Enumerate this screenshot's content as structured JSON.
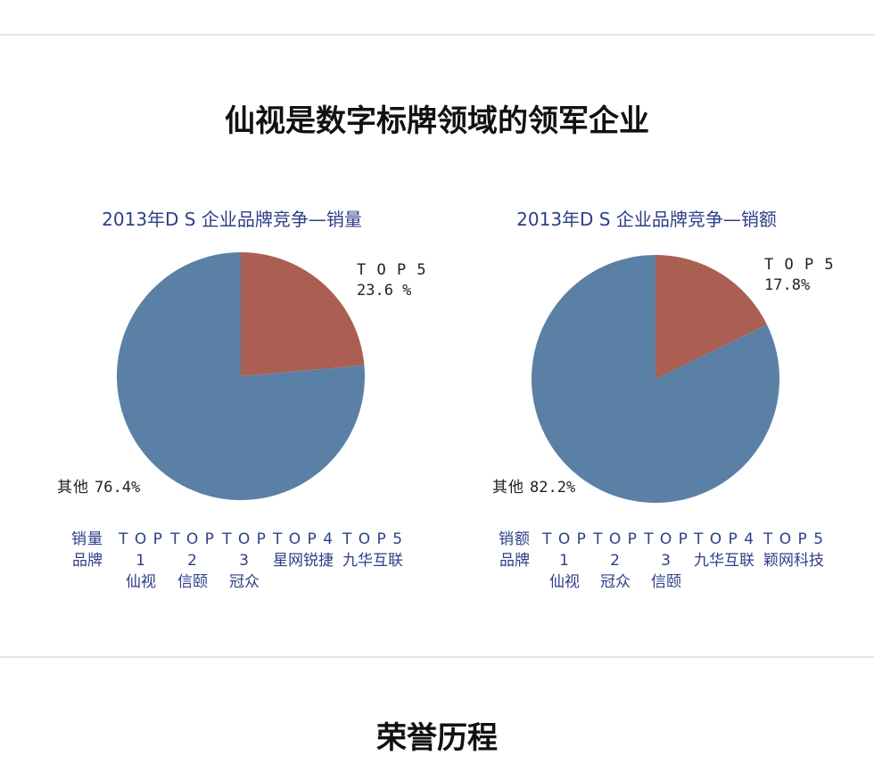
{
  "page": {
    "main_title": "仙视是数字标牌领域的领军企业",
    "honor_title": "荣誉历程"
  },
  "colors": {
    "others": "#5b80a6",
    "top5": "#ab5f52",
    "title_blue": "#2d3f87"
  },
  "chart_data": [
    {
      "type": "pie",
      "title": "2013年D S 企业品牌竞争—销量",
      "slices": [
        {
          "name": "T O P 5",
          "value": 23.6,
          "label": "23.6 %",
          "color": "#ab5f52"
        },
        {
          "name": "其他",
          "value": 76.4,
          "label": "76.4%",
          "color": "#5b80a6"
        }
      ],
      "ranking": {
        "header": [
          "销量",
          "品牌"
        ],
        "items": [
          {
            "rank": "T O P 1",
            "brand": "仙视"
          },
          {
            "rank": "T O P 2",
            "brand": "信颐"
          },
          {
            "rank": "T O P 3",
            "brand": "冠众"
          },
          {
            "rank": "T O P 4",
            "brand": "星网锐捷"
          },
          {
            "rank": "T O P 5",
            "brand": "九华互联"
          }
        ]
      }
    },
    {
      "type": "pie",
      "title": "2013年D S 企业品牌竞争—销额",
      "slices": [
        {
          "name": "T O P 5",
          "value": 17.8,
          "label": "17.8%",
          "color": "#ab5f52"
        },
        {
          "name": "其他",
          "value": 82.2,
          "label": "82.2%",
          "color": "#5b80a6"
        }
      ],
      "ranking": {
        "header": [
          "销额",
          "品牌"
        ],
        "items": [
          {
            "rank": "T O P 1",
            "brand": "仙视"
          },
          {
            "rank": "T O P 2",
            "brand": "冠众"
          },
          {
            "rank": "T O P 3",
            "brand": "信颐"
          },
          {
            "rank": "T O P 4",
            "brand": "九华互联"
          },
          {
            "rank": "T O P 5",
            "brand": "颖网科技"
          }
        ]
      }
    }
  ]
}
